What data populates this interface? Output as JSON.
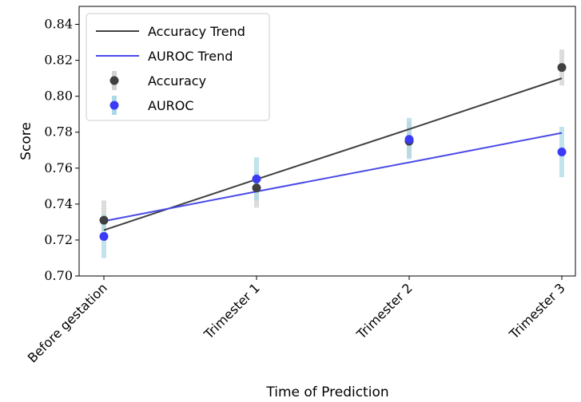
{
  "chart_data": {
    "type": "scatter",
    "title": "",
    "xlabel": "Time of Prediction",
    "ylabel": "Score",
    "categories": [
      "Before gestation",
      "Trimester 1",
      "Trimester 2",
      "Trimester 3"
    ],
    "ylim": [
      0.7,
      0.85
    ],
    "yticks": [
      "0.70",
      "0.72",
      "0.74",
      "0.76",
      "0.78",
      "0.80",
      "0.82",
      "0.84"
    ],
    "grid": false,
    "legend_position": "top-left",
    "series": [
      {
        "name": "Accuracy",
        "kind": "points",
        "values": [
          0.731,
          0.749,
          0.775,
          0.816
        ],
        "err_low": [
          0.725,
          0.738,
          0.766,
          0.806
        ],
        "err_high": [
          0.742,
          0.758,
          0.786,
          0.826
        ],
        "color": "#404040",
        "err_color": "#d3d3d3"
      },
      {
        "name": "AUROC",
        "kind": "points",
        "values": [
          0.722,
          0.754,
          0.776,
          0.769
        ],
        "err_low": [
          0.71,
          0.742,
          0.765,
          0.755
        ],
        "err_high": [
          0.734,
          0.766,
          0.788,
          0.783
        ],
        "color": "#3b3bf5",
        "err_color": "#add8e6"
      },
      {
        "name": "Accuracy Trend",
        "kind": "line",
        "values": [
          0.7255,
          0.7538,
          0.7817,
          0.81
        ],
        "color": "#404040"
      },
      {
        "name": "AUROC Trend",
        "kind": "line",
        "values": [
          0.7305,
          0.747,
          0.7632,
          0.7796
        ],
        "color": "#4a4ae8"
      }
    ],
    "legend": [
      {
        "label": "Accuracy Trend",
        "symbol": "line",
        "color": "#404040"
      },
      {
        "label": "AUROC Trend",
        "symbol": "line",
        "color": "#4a4ae8"
      },
      {
        "label": "Accuracy",
        "symbol": "point",
        "color": "#404040",
        "err_color": "#d3d3d3"
      },
      {
        "label": "AUROC",
        "symbol": "point",
        "color": "#3b3bf5",
        "err_color": "#add8e6"
      }
    ]
  }
}
